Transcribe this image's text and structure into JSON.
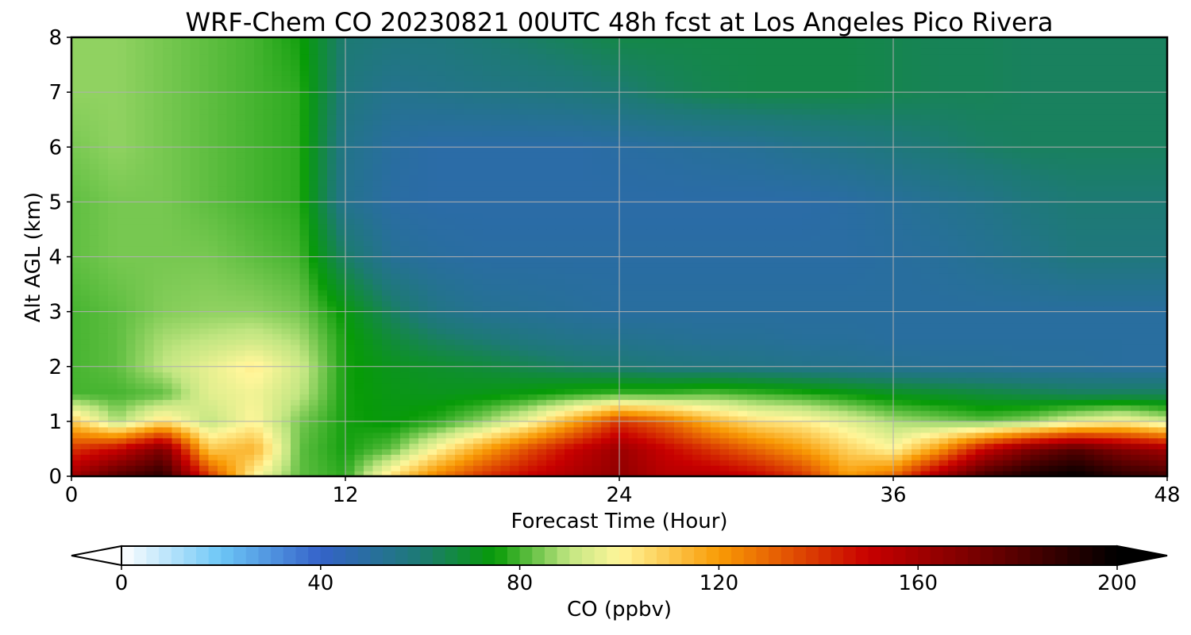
{
  "chart_data": {
    "type": "heatmap",
    "title": "WRF-Chem CO  20230821 00UTC 48h fcst at Los Angeles Pico Rivera",
    "xlabel": "Forecast Time (Hour)",
    "ylabel": "Alt AGL (km)",
    "xlim": [
      0,
      48
    ],
    "ylim": [
      0,
      8
    ],
    "x_ticks": [
      0,
      12,
      24,
      36,
      48
    ],
    "y_ticks": [
      0,
      1,
      2,
      3,
      4,
      5,
      6,
      7,
      8
    ],
    "grid": true,
    "x_hours": [
      0,
      2,
      4,
      6,
      8,
      10,
      12,
      14,
      16,
      18,
      20,
      22,
      24,
      26,
      28,
      30,
      32,
      34,
      36,
      38,
      40,
      42,
      44,
      46,
      48
    ],
    "z_km": [
      0,
      0.5,
      1,
      1.5,
      2,
      2.5,
      3,
      4,
      5,
      6,
      7,
      8
    ],
    "co_ppbv": [
      [
        160,
        180,
        190,
        140,
        100,
        82,
        78,
        105,
        125,
        140,
        150,
        158,
        165,
        155,
        155,
        150,
        140,
        120,
        130,
        160,
        185,
        195,
        200,
        190,
        185
      ],
      [
        140,
        150,
        170,
        110,
        115,
        82,
        76,
        82,
        100,
        118,
        135,
        150,
        162,
        150,
        140,
        130,
        120,
        108,
        100,
        120,
        150,
        170,
        180,
        168,
        160
      ],
      [
        110,
        88,
        105,
        90,
        100,
        84,
        76,
        74,
        78,
        86,
        98,
        118,
        140,
        130,
        115,
        105,
        102,
        95,
        88,
        85,
        82,
        86,
        95,
        100,
        92
      ],
      [
        80,
        80,
        82,
        95,
        98,
        90,
        76,
        73,
        72,
        73,
        75,
        78,
        80,
        80,
        82,
        80,
        78,
        75,
        72,
        70,
        68,
        66,
        64,
        64,
        64
      ],
      [
        80,
        82,
        90,
        96,
        102,
        92,
        76,
        72,
        70,
        68,
        65,
        62,
        60,
        58,
        57,
        56,
        55,
        54,
        53,
        52,
        52,
        51,
        51,
        50,
        50
      ],
      [
        80,
        82,
        88,
        90,
        92,
        88,
        76,
        68,
        63,
        60,
        57,
        55,
        54,
        53,
        52,
        52,
        51,
        51,
        50,
        50,
        50,
        50,
        50,
        50,
        50
      ],
      [
        80,
        82,
        85,
        86,
        86,
        84,
        74,
        63,
        56,
        53,
        52,
        51,
        50,
        50,
        50,
        50,
        50,
        50,
        50,
        50,
        50,
        50,
        50,
        50,
        50
      ],
      [
        82,
        84,
        84,
        84,
        82,
        80,
        62,
        52,
        50,
        49,
        49,
        49,
        49,
        49,
        49,
        49,
        49,
        49,
        50,
        51,
        53,
        55,
        58,
        58,
        58
      ],
      [
        82,
        84,
        84,
        82,
        80,
        78,
        54,
        49,
        48,
        48,
        48,
        48,
        48,
        48,
        48,
        48,
        48,
        49,
        51,
        53,
        55,
        58,
        60,
        60,
        60
      ],
      [
        84,
        86,
        84,
        82,
        80,
        78,
        55,
        50,
        48,
        48,
        48,
        48,
        49,
        50,
        51,
        52,
        54,
        56,
        58,
        60,
        62,
        63,
        63,
        63,
        63
      ],
      [
        86,
        86,
        84,
        82,
        80,
        78,
        58,
        54,
        55,
        56,
        57,
        58,
        60,
        63,
        65,
        66,
        66,
        66,
        65,
        64,
        64,
        63,
        63,
        63,
        63
      ],
      [
        86,
        86,
        84,
        82,
        80,
        76,
        60,
        58,
        58,
        60,
        62,
        64,
        66,
        66,
        66,
        66,
        66,
        66,
        65,
        64,
        64,
        63,
        63,
        63,
        63
      ]
    ]
  },
  "colorbar": {
    "label": "CO  (ppbv)",
    "min": 0,
    "max": 200,
    "ticks": [
      0,
      40,
      80,
      120,
      160,
      200
    ],
    "extend": "both",
    "colors": {
      "0": "#ffffff",
      "20": "#6cc6f6",
      "40": "#3462c9",
      "60": "#1d7a74",
      "75": "#079b07",
      "90": "#c2e682",
      "100": "#fff69a",
      "120": "#f99b05",
      "150": "#c80000",
      "175": "#6a0000",
      "200": "#000000"
    }
  }
}
